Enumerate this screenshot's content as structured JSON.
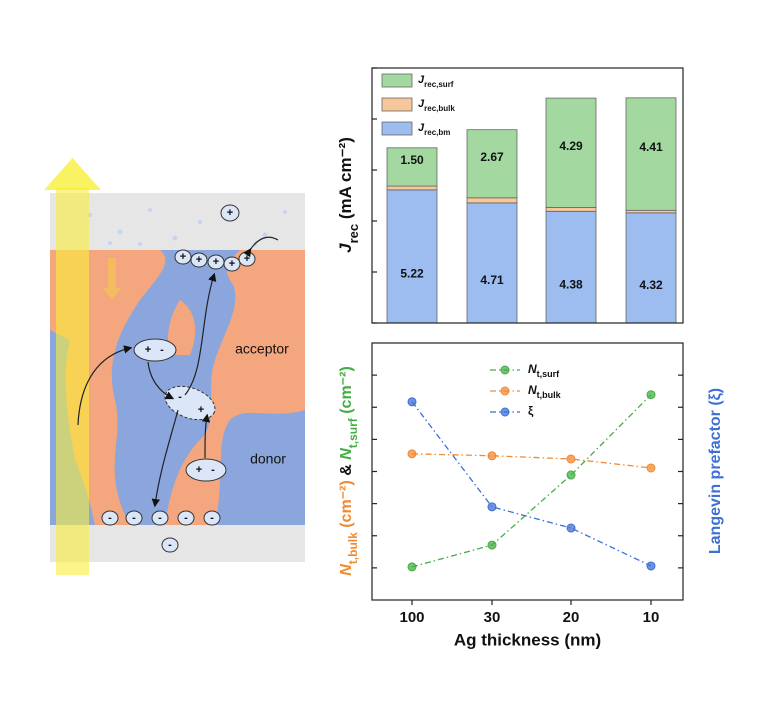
{
  "chart_data": [
    {
      "type": "stacked-bar",
      "ylabel": "Jrec (mA cm⁻²)",
      "categories": [
        null,
        null,
        null,
        null
      ],
      "series": [
        {
          "name": "Jrec,bm",
          "color": "#9dbcf0",
          "values": [
            5.22,
            4.71,
            4.38,
            4.32
          ]
        },
        {
          "name": "Jrec,bulk",
          "color": "#f7c79b",
          "values": [
            0.15,
            0.2,
            0.15,
            0.1
          ]
        },
        {
          "name": "Jrec,surf",
          "color": "#a3d9a0",
          "values": [
            1.5,
            2.67,
            4.29,
            4.41
          ],
          "value_labels": [
            "1.50",
            "2.67",
            "4.29",
            "4.41"
          ]
        }
      ],
      "ylim": [
        0,
        10
      ],
      "yticks": [
        0,
        2,
        4,
        6,
        8,
        10
      ],
      "tick_labels": false,
      "legend": "upper left"
    },
    {
      "type": "line",
      "xlabel": "Ag thickness (nm)",
      "ylabel": [
        "Nt,bulk (cm⁻²)",
        " & ",
        "Nt,surf (cm⁻²)"
      ],
      "y2label": "Langevin prefactor (ξ)",
      "categories": [
        "100",
        "30",
        "20",
        "10"
      ],
      "series": [
        {
          "name": "Nt,surf",
          "color": "#45ad45",
          "values": [
            1.03,
            1.71,
            3.89,
            6.39
          ]
        },
        {
          "name": "Nt,bulk",
          "color": "#f08a33",
          "values": [
            4.55,
            4.49,
            4.39,
            4.11
          ]
        },
        {
          "name": "ξ",
          "color": "#3d6fd6",
          "axis": "y2",
          "values": [
            6.17,
            2.9,
            2.24,
            1.06
          ]
        }
      ],
      "ylim": [
        0,
        8
      ],
      "yticks": [
        1,
        2,
        3,
        4,
        5,
        6,
        7
      ],
      "y2lim": [
        0,
        8
      ],
      "y2ticks": [
        1,
        2,
        3,
        4,
        5,
        6,
        7
      ],
      "tick_labels": false,
      "legend": "upper center"
    }
  ],
  "diagram": {
    "acceptor": "acceptor",
    "donor": "donor",
    "charges": [
      "+",
      "+",
      "+",
      "+",
      "+",
      "+",
      "+",
      "-",
      "-",
      "+",
      "+",
      "-",
      "-",
      "-",
      "-",
      "-",
      "-",
      "-"
    ]
  }
}
